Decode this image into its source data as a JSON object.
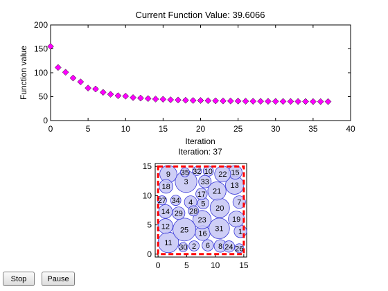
{
  "chart_data": [
    {
      "type": "scatter",
      "title": "Current Function Value: 39.6066",
      "xlabel": "Iteration",
      "ylabel": "Function value",
      "xlim": [
        0,
        40
      ],
      "ylim": [
        0,
        200
      ],
      "xticks": [
        "0",
        "5",
        "10",
        "15",
        "20",
        "25",
        "30",
        "35",
        "40"
      ],
      "yticks": [
        "0",
        "50",
        "100",
        "150",
        "200"
      ],
      "marker": "diamond",
      "marker_color": "#ff00ff",
      "x": [
        0,
        1,
        2,
        3,
        4,
        5,
        6,
        7,
        8,
        9,
        10,
        11,
        12,
        13,
        14,
        15,
        16,
        17,
        18,
        19,
        20,
        21,
        22,
        23,
        24,
        25,
        26,
        27,
        28,
        29,
        30,
        31,
        32,
        33,
        34,
        35,
        36,
        37
      ],
      "y": [
        155,
        111,
        101,
        89,
        81,
        68,
        66,
        59,
        55,
        52,
        51,
        48,
        47,
        46,
        45,
        44.5,
        43.5,
        43,
        42.5,
        42,
        42,
        41.6,
        41.3,
        41,
        40.9,
        40.7,
        40.5,
        40.4,
        40.3,
        40.2,
        40.1,
        40,
        39.95,
        39.9,
        39.8,
        39.7,
        39.65,
        39.61
      ]
    },
    {
      "type": "scatter",
      "title": "Iteration: 37",
      "xlim": [
        -0.5,
        15.5
      ],
      "ylim": [
        -0.5,
        15.5
      ],
      "xticks": [
        "0",
        "5",
        "10",
        "15"
      ],
      "yticks": [
        "0",
        "5",
        "10",
        "15"
      ],
      "boundary": {
        "x0": 0,
        "y0": 0,
        "x1": 15,
        "y1": 15,
        "color": "#ff0000",
        "style": "dashed"
      },
      "circle_fill": "#c6c6f5",
      "circle_stroke": "#3a3ad8",
      "circles": [
        {
          "label": "1",
          "x": 14.4,
          "y": 3.9,
          "r": 1.1
        },
        {
          "label": "2",
          "x": 6.3,
          "y": 1.4,
          "r": 0.9
        },
        {
          "label": "3",
          "x": 4.9,
          "y": 12.4,
          "r": 1.9
        },
        {
          "label": "4",
          "x": 5.7,
          "y": 8.9,
          "r": 1.1
        },
        {
          "label": "5",
          "x": 7.9,
          "y": 8.7,
          "r": 1.0
        },
        {
          "label": "6",
          "x": 8.7,
          "y": 1.5,
          "r": 1.0
        },
        {
          "label": "7",
          "x": 14.2,
          "y": 8.9,
          "r": 1.1
        },
        {
          "label": "8",
          "x": 10.9,
          "y": 1.4,
          "r": 1.1
        },
        {
          "label": "9",
          "x": 1.8,
          "y": 13.7,
          "r": 1.5
        },
        {
          "label": "10",
          "x": 8.8,
          "y": 14.2,
          "r": 0.9
        },
        {
          "label": "11",
          "x": 1.8,
          "y": 2.0,
          "r": 1.8
        },
        {
          "label": "12",
          "x": 1.3,
          "y": 4.8,
          "r": 1.3
        },
        {
          "label": "13",
          "x": 13.4,
          "y": 11.8,
          "r": 1.6
        },
        {
          "label": "14",
          "x": 1.3,
          "y": 7.3,
          "r": 1.2
        },
        {
          "label": "15",
          "x": 13.5,
          "y": 14.0,
          "r": 1.2
        },
        {
          "label": "16",
          "x": 7.8,
          "y": 3.6,
          "r": 1.3
        },
        {
          "label": "17",
          "x": 7.6,
          "y": 10.3,
          "r": 1.0
        },
        {
          "label": "18",
          "x": 1.4,
          "y": 11.6,
          "r": 1.2
        },
        {
          "label": "19",
          "x": 13.7,
          "y": 6.0,
          "r": 1.4
        },
        {
          "label": "20",
          "x": 10.8,
          "y": 7.9,
          "r": 1.7
        },
        {
          "label": "21",
          "x": 10.3,
          "y": 10.8,
          "r": 1.6
        },
        {
          "label": "22",
          "x": 11.3,
          "y": 13.7,
          "r": 1.4
        },
        {
          "label": "23",
          "x": 7.7,
          "y": 5.9,
          "r": 1.6
        },
        {
          "label": "24",
          "x": 12.4,
          "y": 1.3,
          "r": 1.0
        },
        {
          "label": "25",
          "x": 4.6,
          "y": 4.2,
          "r": 2.0
        },
        {
          "label": "26",
          "x": 14.2,
          "y": 1.0,
          "r": 0.8
        },
        {
          "label": "27",
          "x": 0.7,
          "y": 9.2,
          "r": 0.8
        },
        {
          "label": "28",
          "x": 6.2,
          "y": 7.4,
          "r": 0.9
        },
        {
          "label": "29",
          "x": 3.6,
          "y": 7.0,
          "r": 1.1
        },
        {
          "label": "30",
          "x": 4.4,
          "y": 1.2,
          "r": 0.8
        },
        {
          "label": "31",
          "x": 10.7,
          "y": 4.4,
          "r": 1.8
        },
        {
          "label": "32",
          "x": 6.8,
          "y": 14.2,
          "r": 0.8
        },
        {
          "label": "33",
          "x": 8.2,
          "y": 12.4,
          "r": 1.1
        },
        {
          "label": "34",
          "x": 3.1,
          "y": 9.2,
          "r": 0.9
        },
        {
          "label": "35",
          "x": 4.7,
          "y": 14.0,
          "r": 0.8
        }
      ]
    }
  ],
  "controls": {
    "stop_label": "Stop",
    "pause_label": "Pause"
  }
}
